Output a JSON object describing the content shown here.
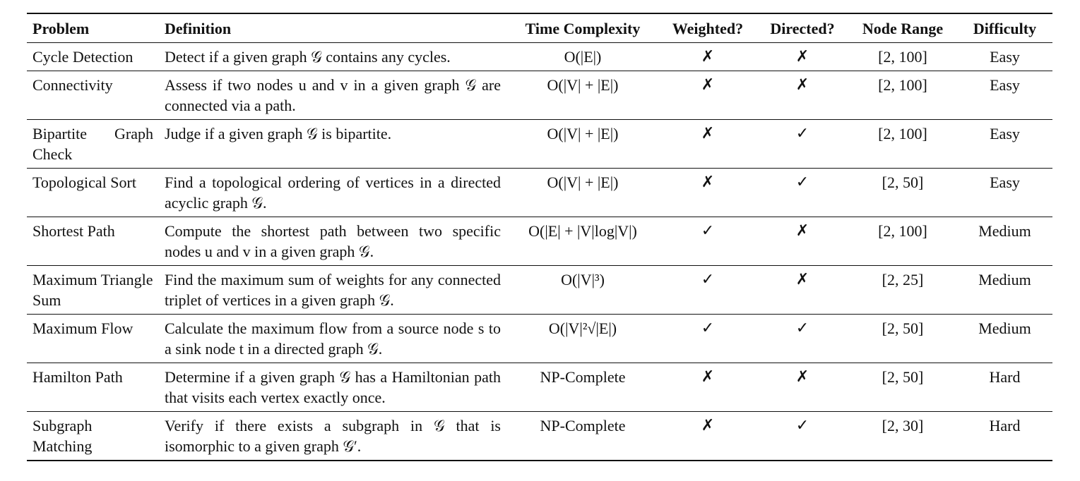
{
  "table": {
    "headers": [
      "Problem",
      "Definition",
      "Time Complexity",
      "Weighted?",
      "Directed?",
      "Node Range",
      "Difficulty"
    ],
    "rows": [
      {
        "problem": "Cycle Detection",
        "definition": "Detect if a given graph 𝒢 contains any cycles.",
        "complexity": "O(|E|)",
        "weighted": "✗",
        "directed": "✗",
        "range": "[2, 100]",
        "difficulty": "Easy"
      },
      {
        "problem": "Connectivity",
        "definition": "Assess if two nodes u and v in a given graph 𝒢 are connected via a path.",
        "complexity": "O(|V| + |E|)",
        "weighted": "✗",
        "directed": "✗",
        "range": "[2, 100]",
        "difficulty": "Easy"
      },
      {
        "problem": "Bipartite Graph Check",
        "definition": "Judge if a given graph 𝒢 is bipartite.",
        "complexity": "O(|V| + |E|)",
        "weighted": "✗",
        "directed": "✓",
        "range": "[2, 100]",
        "difficulty": "Easy"
      },
      {
        "problem": "Topological Sort",
        "definition": "Find a topological ordering of vertices in a directed acyclic graph 𝒢.",
        "complexity": "O(|V| + |E|)",
        "weighted": "✗",
        "directed": "✓",
        "range": "[2, 50]",
        "difficulty": "Easy"
      },
      {
        "problem": "Shortest Path",
        "definition": "Compute the shortest path between two specific nodes u and v in a given graph 𝒢.",
        "complexity": "O(|E| + |V|log|V|)",
        "weighted": "✓",
        "directed": "✗",
        "range": "[2, 100]",
        "difficulty": "Medium"
      },
      {
        "problem": "Maximum Triangle Sum",
        "definition": "Find the maximum sum of weights for any connected triplet of vertices in a given graph 𝒢.",
        "complexity": "O(|V|³)",
        "weighted": "✓",
        "directed": "✗",
        "range": "[2, 25]",
        "difficulty": "Medium"
      },
      {
        "problem": "Maximum Flow",
        "definition": "Calculate the maximum flow from a source node s to a sink node t in a directed graph 𝒢.",
        "complexity": "O(|V|²√|E|)",
        "weighted": "✓",
        "directed": "✓",
        "range": "[2, 50]",
        "difficulty": "Medium"
      },
      {
        "problem": "Hamilton Path",
        "definition": "Determine if a given graph 𝒢 has a Hamiltonian path that visits each vertex exactly once.",
        "complexity": "NP-Complete",
        "weighted": "✗",
        "directed": "✗",
        "range": "[2, 50]",
        "difficulty": "Hard"
      },
      {
        "problem": "Subgraph Matching",
        "definition": "Verify if there exists a subgraph in 𝒢 that is isomorphic to a given graph 𝒢′.",
        "complexity": "NP-Complete",
        "weighted": "✗",
        "directed": "✓",
        "range": "[2, 30]",
        "difficulty": "Hard"
      }
    ]
  }
}
